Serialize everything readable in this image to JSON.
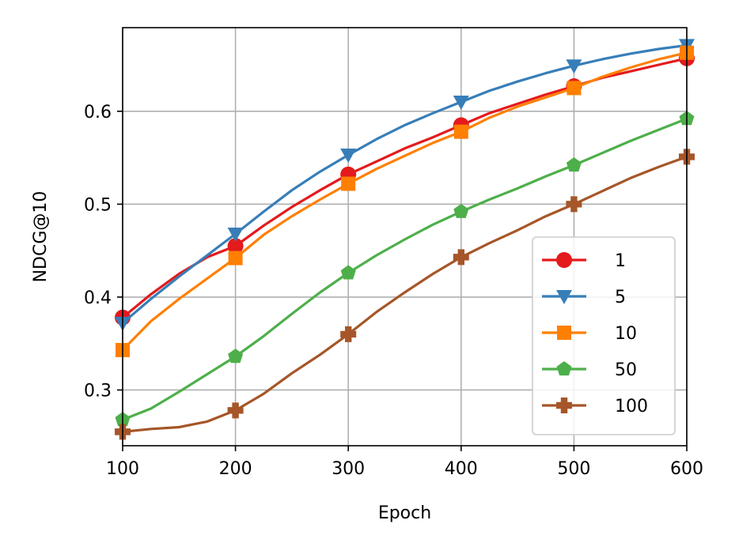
{
  "chart_data": {
    "type": "line",
    "xlabel": "Epoch",
    "ylabel": "NDCG@10",
    "xlim": [
      100,
      600
    ],
    "ylim": [
      0.24,
      0.69
    ],
    "xticks": [
      100,
      200,
      300,
      400,
      500,
      600
    ],
    "xtick_labels": [
      "100",
      "200",
      "300",
      "400",
      "500",
      "600"
    ],
    "yticks": [
      0.3,
      0.4,
      0.5,
      0.6
    ],
    "ytick_labels": [
      "0.3",
      "0.4",
      "0.5",
      "0.6"
    ],
    "grid": true,
    "legend_position": "lower-right",
    "markers_at": [
      100,
      200,
      300,
      400,
      500,
      600
    ],
    "series": [
      {
        "name": "1",
        "color": "#e41a1c",
        "marker": "circle",
        "x": [
          100,
          125,
          150,
          175,
          200,
          225,
          250,
          275,
          300,
          325,
          350,
          375,
          400,
          425,
          450,
          475,
          500,
          525,
          550,
          575,
          600
        ],
        "values": [
          0.378,
          0.403,
          0.425,
          0.443,
          0.455,
          0.477,
          0.497,
          0.515,
          0.532,
          0.546,
          0.56,
          0.572,
          0.585,
          0.598,
          0.608,
          0.618,
          0.627,
          0.636,
          0.643,
          0.65,
          0.657
        ]
      },
      {
        "name": "5",
        "color": "#377eb8",
        "marker": "triangle-down",
        "x": [
          100,
          125,
          150,
          175,
          200,
          225,
          250,
          275,
          300,
          325,
          350,
          375,
          400,
          425,
          450,
          475,
          500,
          525,
          550,
          575,
          600
        ],
        "values": [
          0.372,
          0.398,
          0.422,
          0.445,
          0.468,
          0.492,
          0.515,
          0.535,
          0.553,
          0.57,
          0.585,
          0.598,
          0.61,
          0.622,
          0.632,
          0.641,
          0.649,
          0.656,
          0.662,
          0.667,
          0.671
        ]
      },
      {
        "name": "10",
        "color": "#ff7f00",
        "marker": "square",
        "x": [
          100,
          125,
          150,
          175,
          200,
          225,
          250,
          275,
          300,
          325,
          350,
          375,
          400,
          425,
          450,
          475,
          500,
          525,
          550,
          575,
          600
        ],
        "values": [
          0.343,
          0.374,
          0.398,
          0.42,
          0.442,
          0.467,
          0.487,
          0.505,
          0.522,
          0.538,
          0.552,
          0.566,
          0.578,
          0.593,
          0.605,
          0.615,
          0.625,
          0.637,
          0.647,
          0.656,
          0.663
        ]
      },
      {
        "name": "50",
        "color": "#4daf4a",
        "marker": "pentagon",
        "x": [
          100,
          125,
          150,
          175,
          200,
          225,
          250,
          275,
          300,
          325,
          350,
          375,
          400,
          425,
          450,
          475,
          500,
          525,
          550,
          575,
          600
        ],
        "values": [
          0.268,
          0.28,
          0.298,
          0.317,
          0.336,
          0.358,
          0.382,
          0.405,
          0.426,
          0.445,
          0.462,
          0.478,
          0.492,
          0.505,
          0.517,
          0.53,
          0.542,
          0.555,
          0.568,
          0.58,
          0.592
        ]
      },
      {
        "name": "100",
        "color": "#a65628",
        "marker": "plus",
        "x": [
          100,
          125,
          150,
          175,
          200,
          225,
          250,
          275,
          300,
          325,
          350,
          375,
          400,
          425,
          450,
          475,
          500,
          525,
          550,
          575,
          600
        ],
        "values": [
          0.255,
          0.258,
          0.26,
          0.266,
          0.278,
          0.296,
          0.318,
          0.338,
          0.36,
          0.384,
          0.405,
          0.425,
          0.443,
          0.458,
          0.472,
          0.487,
          0.5,
          0.514,
          0.528,
          0.54,
          0.551
        ]
      }
    ]
  }
}
